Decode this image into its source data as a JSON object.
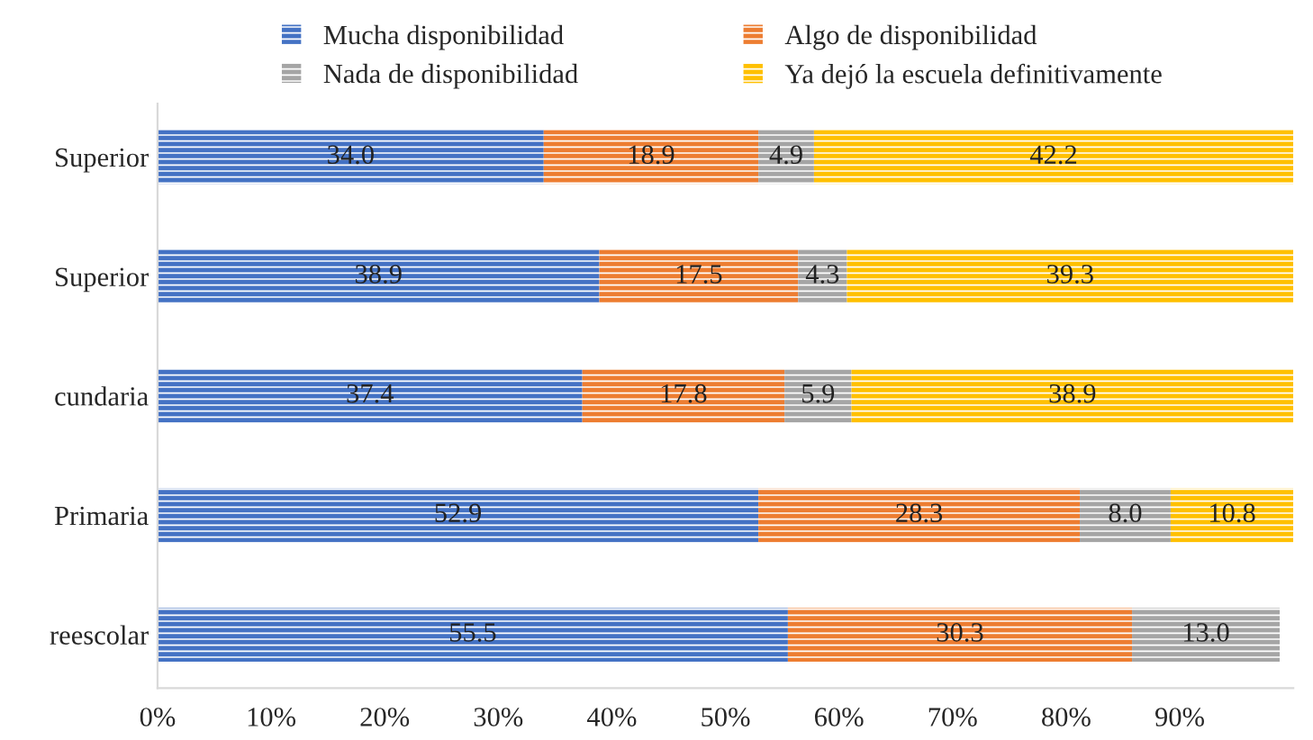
{
  "chart_data": {
    "type": "bar",
    "orientation": "horizontal",
    "stacked": true,
    "grid": false,
    "legend": "top",
    "categories": [
      "Superior",
      "Superior",
      "cundaria",
      "Primaria",
      "reescolar"
    ],
    "series": [
      {
        "name": "Mucha disponibilidad",
        "color": "#4472c4",
        "values": [
          34.0,
          38.9,
          37.4,
          52.9,
          55.5
        ],
        "value_labels": [
          "34.0",
          "38.9",
          "37.4",
          "52.9",
          "55.5"
        ]
      },
      {
        "name": "Algo de disponibilidad",
        "color": "#ed7d31",
        "values": [
          18.9,
          17.5,
          17.8,
          28.3,
          30.3
        ],
        "value_labels": [
          "18.9",
          "17.5",
          "17.8",
          "28.3",
          "30.3"
        ]
      },
      {
        "name": "Nada de disponibilidad",
        "color": "#a5a5a5",
        "values": [
          4.9,
          4.3,
          5.9,
          8.0,
          13.0
        ],
        "value_labels": [
          "4.9",
          "4.3",
          "5.9",
          "8.0",
          "13.0"
        ]
      },
      {
        "name": "Ya dejó la escuela definitivamente",
        "color": "#ffc000",
        "values": [
          42.2,
          39.3,
          38.9,
          10.8,
          null
        ],
        "value_labels": [
          "42.2",
          "39.3",
          "38.9",
          "10.8",
          null
        ]
      }
    ],
    "xlim": [
      0,
      100
    ],
    "xticks": [
      {
        "value": 0,
        "label": "0%"
      },
      {
        "value": 10,
        "label": "10%"
      },
      {
        "value": 20,
        "label": "20%"
      },
      {
        "value": 30,
        "label": "30%"
      },
      {
        "value": 40,
        "label": "40%"
      },
      {
        "value": 50,
        "label": "50%"
      },
      {
        "value": 60,
        "label": "60%"
      },
      {
        "value": 70,
        "label": "70%"
      },
      {
        "value": 80,
        "label": "80%"
      },
      {
        "value": 90,
        "label": "90%"
      }
    ]
  }
}
